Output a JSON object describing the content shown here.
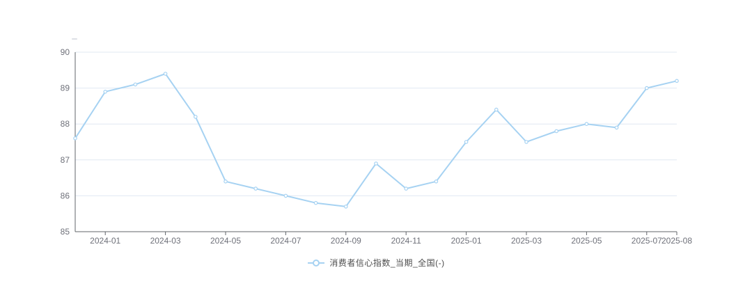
{
  "chart_data": {
    "type": "line",
    "title": "",
    "xlabel": "",
    "ylabel": "",
    "ylim": [
      85,
      90
    ],
    "y_ticks": [
      85,
      86,
      87,
      88,
      89,
      90
    ],
    "grid": true,
    "legend_position": "bottom",
    "x": [
      "2023-12",
      "2024-01",
      "2024-02",
      "2024-03",
      "2024-04",
      "2024-05",
      "2024-06",
      "2024-07",
      "2024-08",
      "2024-09",
      "2024-10",
      "2024-11",
      "2024-12",
      "2025-01",
      "2025-02",
      "2025-03",
      "2025-04",
      "2025-05",
      "2025-06",
      "2025-07",
      "2025-08"
    ],
    "x_tick_labels": [
      "2024-01",
      "2024-03",
      "2024-05",
      "2024-07",
      "2024-09",
      "2024-11",
      "2025-01",
      "2025-03",
      "2025-05",
      "2025-07",
      "2025-08"
    ],
    "series": [
      {
        "name": "消费者信心指数_当期_全国(-)",
        "values": [
          87.6,
          88.9,
          89.1,
          89.4,
          88.2,
          86.4,
          86.2,
          86.0,
          85.8,
          85.7,
          86.9,
          86.2,
          86.4,
          87.5,
          88.4,
          87.5,
          87.8,
          88.0,
          87.9,
          89.0,
          89.2
        ]
      }
    ]
  },
  "legend": {
    "label": "消费者信心指数_当期_全国(-)"
  },
  "colors": {
    "line": "#a6d2f2",
    "marker_fill": "#ffffff",
    "grid": "#e0e8f2",
    "axis": "#60646a",
    "tick_text": "#6e7079",
    "legend_text": "#4d4d4d",
    "background": "#ffffff"
  }
}
